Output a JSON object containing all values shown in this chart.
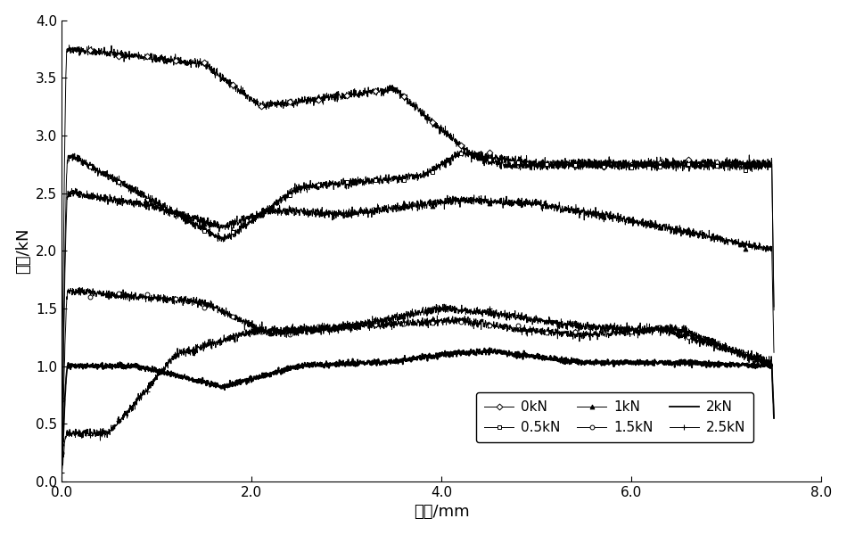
{
  "xlabel": "位移/mm",
  "ylabel": "剪力/kN",
  "xlim": [
    0,
    8.0
  ],
  "ylim": [
    0.0,
    4.0
  ],
  "xticks": [
    0.0,
    2.0,
    4.0,
    6.0,
    8.0
  ],
  "yticks": [
    0.0,
    0.5,
    1.0,
    1.5,
    2.0,
    2.5,
    3.0,
    3.5,
    4.0
  ],
  "legend_entries": [
    "0kN",
    "0.5kN",
    "1kN",
    "1.5kN",
    "2kN",
    "2.5kN"
  ],
  "background_color": "#ffffff",
  "figsize": [
    9.5,
    6.0
  ],
  "dpi": 100
}
